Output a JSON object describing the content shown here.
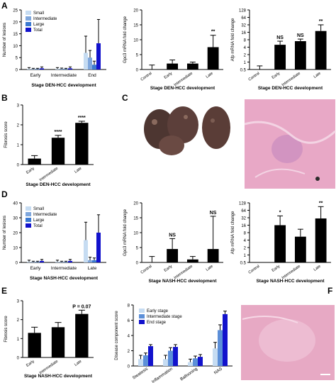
{
  "figure": {
    "panel_letters": [
      "A",
      "B",
      "C",
      "D",
      "E",
      "F"
    ],
    "significance": {
      "ns": "NS",
      "p2": "**",
      "p1": "*",
      "p4": "****",
      "p_value_e": "P = 0.07"
    }
  },
  "colors": {
    "small": "#c6dcf2",
    "intermediate": "#7fa7dd",
    "large": "#3b7ad1",
    "total": "#1212cc",
    "early_stage": "#c6dcf2",
    "intermediate_stage": "#5c8fd8",
    "end_stage": "#1212cc",
    "black": "#000000",
    "tissue_pink": "#e8a8c6",
    "liver_dark": "#5c3f3a"
  },
  "chart_data": [
    {
      "id": "A1",
      "type": "bar",
      "ylabel": "Number of lesions",
      "xlabel": "Stage DEN-HCC development",
      "categories": [
        "Early",
        "Intermediate",
        "End"
      ],
      "ylim": [
        0,
        25
      ],
      "yticks": [
        0,
        5,
        10,
        15,
        20,
        25
      ],
      "legend": "top-left",
      "series": [
        {
          "name": "Small",
          "values": [
            0.3,
            0.3,
            7
          ],
          "errors": [
            0.5,
            0.5,
            7
          ]
        },
        {
          "name": "Intermediate",
          "values": [
            0.2,
            0.3,
            5
          ],
          "errors": [
            0.3,
            0.3,
            3
          ]
        },
        {
          "name": "Large",
          "values": [
            0.2,
            0.2,
            2
          ],
          "errors": [
            0.3,
            0.3,
            1.5
          ]
        },
        {
          "name": "Total",
          "values": [
            0.5,
            0.5,
            11
          ],
          "errors": [
            0.6,
            0.6,
            10
          ]
        }
      ]
    },
    {
      "id": "A2",
      "type": "bar",
      "ylabel": "Gpc3 mRNA fold change",
      "xlabel": "Stage DEN-HCC development",
      "categories": [
        "Control",
        "Early",
        "Intermediate",
        "Late"
      ],
      "ylim": [
        0,
        20
      ],
      "yticks": [
        0,
        5,
        10,
        15,
        20
      ],
      "values": [
        0,
        2,
        2,
        7.5
      ],
      "errors": [
        1.5,
        1.2,
        0.5,
        4
      ],
      "annotations": [
        "",
        "",
        "",
        "**"
      ]
    },
    {
      "id": "A3",
      "type": "bar",
      "scale": "log2",
      "ylabel": "Afp mRNA fold change",
      "xlabel": "Stage DEN-HCC development",
      "categories": [
        "Control",
        "Early",
        "Intermediate",
        "Late"
      ],
      "yticks": [
        0.5,
        1,
        2,
        4,
        8,
        16,
        32,
        64,
        128
      ],
      "ytick_labels": [
        "0.5",
        "1",
        "2",
        "4",
        "8",
        "16",
        "32",
        "64",
        "128"
      ],
      "values": [
        0.5,
        5,
        7,
        18
      ],
      "errors_up": [
        0.7,
        7,
        8.5,
        32
      ],
      "annotations": [
        "",
        "NS",
        "NS",
        "**"
      ]
    },
    {
      "id": "B",
      "type": "bar",
      "ylabel": "Fibrosis score",
      "xlabel": "Stage DEN-HCC development",
      "categories": [
        "Early",
        "Intermediate",
        "Late"
      ],
      "ylim": [
        0,
        3
      ],
      "yticks": [
        0,
        1,
        2,
        3
      ],
      "values": [
        0.3,
        1.35,
        2.1
      ],
      "errors": [
        0.15,
        0.12,
        0.08
      ],
      "annotations": [
        "",
        "****",
        "****"
      ]
    },
    {
      "id": "D1",
      "type": "bar",
      "ylabel": "Number of lesions",
      "xlabel": "Stage NASH-HCC development",
      "categories": [
        "Early",
        "Intermediate",
        "Late"
      ],
      "ylim": [
        0,
        40
      ],
      "yticks": [
        0,
        10,
        20,
        30,
        40
      ],
      "legend": "top-left",
      "series": [
        {
          "name": "Small",
          "values": [
            0.5,
            0.5,
            15
          ],
          "errors": [
            1,
            1,
            12
          ]
        },
        {
          "name": "Intermediate",
          "values": [
            0.3,
            0.3,
            1.5
          ],
          "errors": [
            0.5,
            0.5,
            2
          ]
        },
        {
          "name": "Large",
          "values": [
            0.3,
            0.3,
            1.5
          ],
          "errors": [
            0.5,
            0.5,
            1.5
          ]
        },
        {
          "name": "Total",
          "values": [
            1,
            1,
            20
          ],
          "errors": [
            1,
            1,
            12
          ]
        }
      ]
    },
    {
      "id": "D2",
      "type": "bar",
      "ylabel": "Gpc3 mRNA fold change",
      "xlabel": "Stage NASH-HCC development",
      "categories": [
        "Control",
        "Early",
        "Intermediate",
        "Late"
      ],
      "ylim": [
        0,
        20
      ],
      "yticks": [
        0,
        5,
        10,
        15,
        20
      ],
      "values": [
        0,
        4.5,
        1,
        4.5
      ],
      "errors": [
        2,
        3.5,
        1,
        11
      ],
      "annotations": [
        "",
        "NS",
        "",
        "NS"
      ]
    },
    {
      "id": "D3",
      "type": "bar",
      "scale": "log2",
      "ylabel": "Afp mRNA fold change",
      "xlabel": "Stage NASH-HCC development",
      "categories": [
        "Control",
        "Early",
        "Intermediate",
        "Late"
      ],
      "yticks": [
        0.5,
        1,
        2,
        4,
        8,
        16,
        32,
        64,
        128
      ],
      "ytick_labels": [
        "0.5",
        "1",
        "2",
        "4",
        "8",
        "16",
        "32",
        "64",
        "128"
      ],
      "values": [
        0.5,
        16,
        5.5,
        30
      ],
      "errors_up": [
        0.5,
        38,
        11,
        90
      ],
      "annotations": [
        "",
        "*",
        "",
        "**"
      ]
    },
    {
      "id": "E1",
      "type": "bar",
      "ylabel": "Fibrosis score",
      "xlabel": "Stage NASH-HCC development",
      "categories": [
        "Early",
        "Intermediate",
        "Late"
      ],
      "ylim": [
        0,
        3
      ],
      "yticks": [
        0,
        1,
        2,
        3
      ],
      "values": [
        1.3,
        1.6,
        2.3
      ],
      "errors": [
        0.3,
        0.25,
        0.2
      ],
      "annotations": [
        "",
        "",
        "P = 0.07"
      ]
    },
    {
      "id": "E2",
      "type": "bar",
      "ylabel": "Disease component score",
      "xlabel": "",
      "categories": [
        "Steatosis",
        "Inflammation",
        "Ballooning",
        "NAS"
      ],
      "ylim": [
        0,
        8
      ],
      "yticks": [
        0,
        2,
        4,
        6,
        8
      ],
      "legend": "top-left",
      "series": [
        {
          "name": "Early stage",
          "values": [
            0.9,
            0.9,
            0.5,
            2.3
          ],
          "errors": [
            0.5,
            0.5,
            0.4,
            0.8
          ]
        },
        {
          "name": "Intermediate stage",
          "values": [
            1.4,
            2.0,
            1.0,
            4.7
          ],
          "errors": [
            0.3,
            0.4,
            0.3,
            0.7
          ]
        },
        {
          "name": "End stage",
          "values": [
            2.6,
            2.5,
            1.2,
            6.8
          ],
          "errors": [
            0.2,
            0.3,
            0.3,
            0.4
          ]
        }
      ]
    }
  ]
}
